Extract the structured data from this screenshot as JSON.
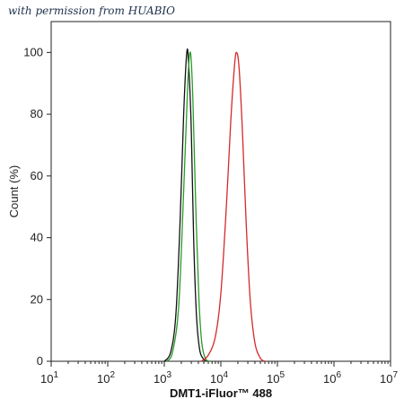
{
  "watermark": "with permission from HUABIO",
  "chart_data": {
    "type": "line",
    "xlabel": "DMT1-iFluor™ 488",
    "ylabel": "Count  (%)",
    "x_scale": "log",
    "xlim": [
      10,
      10000000
    ],
    "ylim": [
      0,
      110
    ],
    "x_ticks": [
      {
        "value": 10,
        "base": "10",
        "exp": "1"
      },
      {
        "value": 100,
        "base": "10",
        "exp": "2"
      },
      {
        "value": 1000,
        "base": "10",
        "exp": "3"
      },
      {
        "value": 10000,
        "base": "10",
        "exp": "4"
      },
      {
        "value": 100000,
        "base": "10",
        "exp": "5"
      },
      {
        "value": 1000000,
        "base": "10",
        "exp": "6"
      },
      {
        "value": 10000000,
        "base": "10",
        "exp": "7"
      }
    ],
    "y_ticks": [
      0,
      20,
      40,
      60,
      80,
      100
    ],
    "grid": false,
    "series": [
      {
        "color": "#111111",
        "x": [
          1000,
          1300,
          1600,
          1900,
          2200,
          2500,
          2700,
          3000,
          3300,
          3700,
          4200,
          4800,
          5500
        ],
        "y": [
          0,
          3,
          15,
          45,
          80,
          100,
          96,
          75,
          40,
          15,
          4,
          1,
          0
        ]
      },
      {
        "color": "#2a9a2a",
        "x": [
          1100,
          1400,
          1800,
          2200,
          2600,
          2900,
          3200,
          3600,
          4100,
          4600,
          5300,
          6200
        ],
        "y": [
          0,
          3,
          18,
          55,
          90,
          100,
          85,
          50,
          20,
          6,
          1,
          0
        ]
      },
      {
        "color": "#d42a2a",
        "x": [
          4500,
          6000,
          8000,
          10000,
          12500,
          15000,
          17500,
          19000,
          21000,
          24000,
          28000,
          33000,
          40000,
          50000,
          60000
        ],
        "y": [
          0,
          2,
          8,
          22,
          50,
          78,
          96,
          100,
          95,
          75,
          45,
          20,
          6,
          1,
          0
        ]
      }
    ]
  }
}
